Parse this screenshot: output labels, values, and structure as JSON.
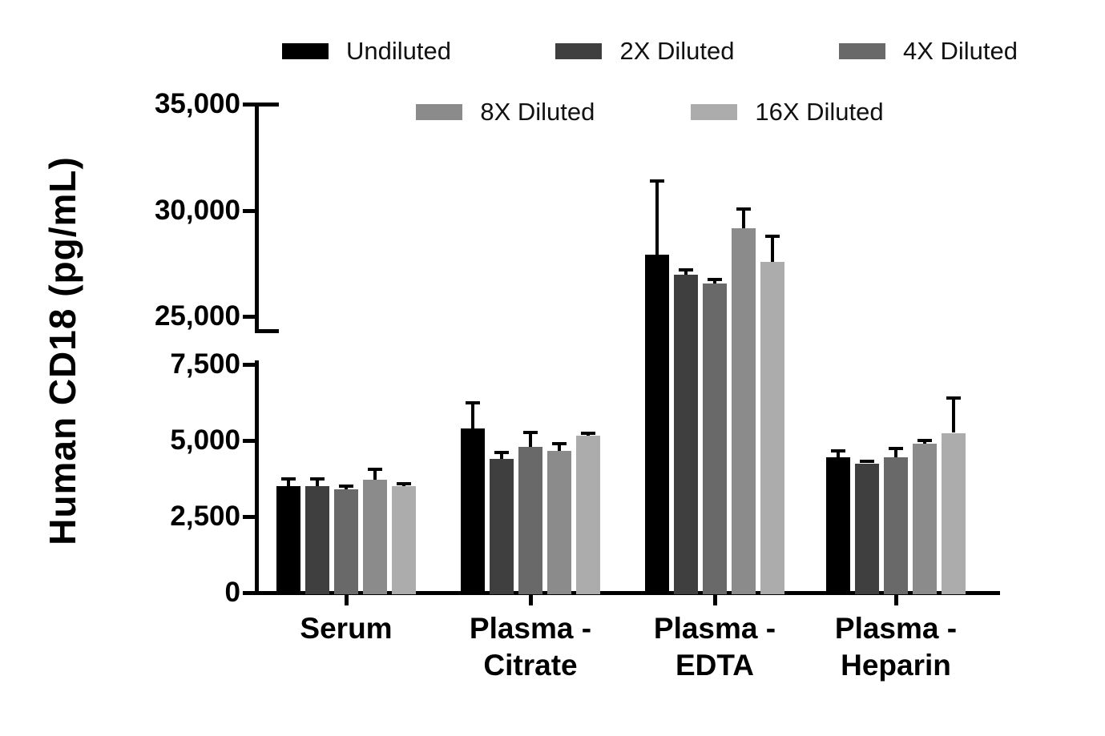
{
  "chart_data": {
    "type": "bar",
    "title": "",
    "ylabel": "Human CD18 (pg/mL)",
    "xlabel": "",
    "grid": false,
    "legend_position": "top",
    "axis_break": true,
    "categories": [
      "Serum",
      "Plasma -\nCitrate",
      "Plasma -\nEDTA",
      "Plasma -\nHeparin"
    ],
    "series": [
      {
        "name": "Undiluted",
        "color": "#000000",
        "values": [
          3500,
          5400,
          27900,
          4450
        ],
        "errors": [
          280,
          900,
          3550,
          270
        ]
      },
      {
        "name": "2X Diluted",
        "color": "#3f3f3f",
        "values": [
          3500,
          4400,
          26950,
          4250
        ],
        "errors": [
          300,
          260,
          300,
          130
        ]
      },
      {
        "name": "4X Diluted",
        "color": "#696969",
        "values": [
          3400,
          4800,
          26550,
          4450
        ],
        "errors": [
          160,
          520,
          250,
          350
        ]
      },
      {
        "name": "8X Diluted",
        "color": "#8b8b8b",
        "values": [
          3700,
          4650,
          29150,
          4900
        ],
        "errors": [
          400,
          300,
          1000,
          160
        ]
      },
      {
        "name": "16X Diluted",
        "color": "#acacac",
        "values": [
          3500,
          5150,
          27550,
          5250
        ],
        "errors": [
          130,
          130,
          1300,
          1200
        ]
      }
    ],
    "lower_axis": {
      "min": 0,
      "max": 7500,
      "ticks": [
        0,
        2500,
        5000,
        7500
      ],
      "tick_labels": [
        "0",
        "2,500",
        "5,000",
        "7,500"
      ]
    },
    "upper_axis": {
      "min": 25000,
      "max": 35000,
      "ticks": [
        25000,
        30000,
        35000
      ],
      "tick_labels": [
        "25,000",
        "30,000",
        "35,000"
      ]
    },
    "legend_rows": [
      [
        "Undiluted",
        "2X Diluted",
        "4X Diluted"
      ],
      [
        "8X Diluted",
        "16X Diluted"
      ]
    ]
  }
}
